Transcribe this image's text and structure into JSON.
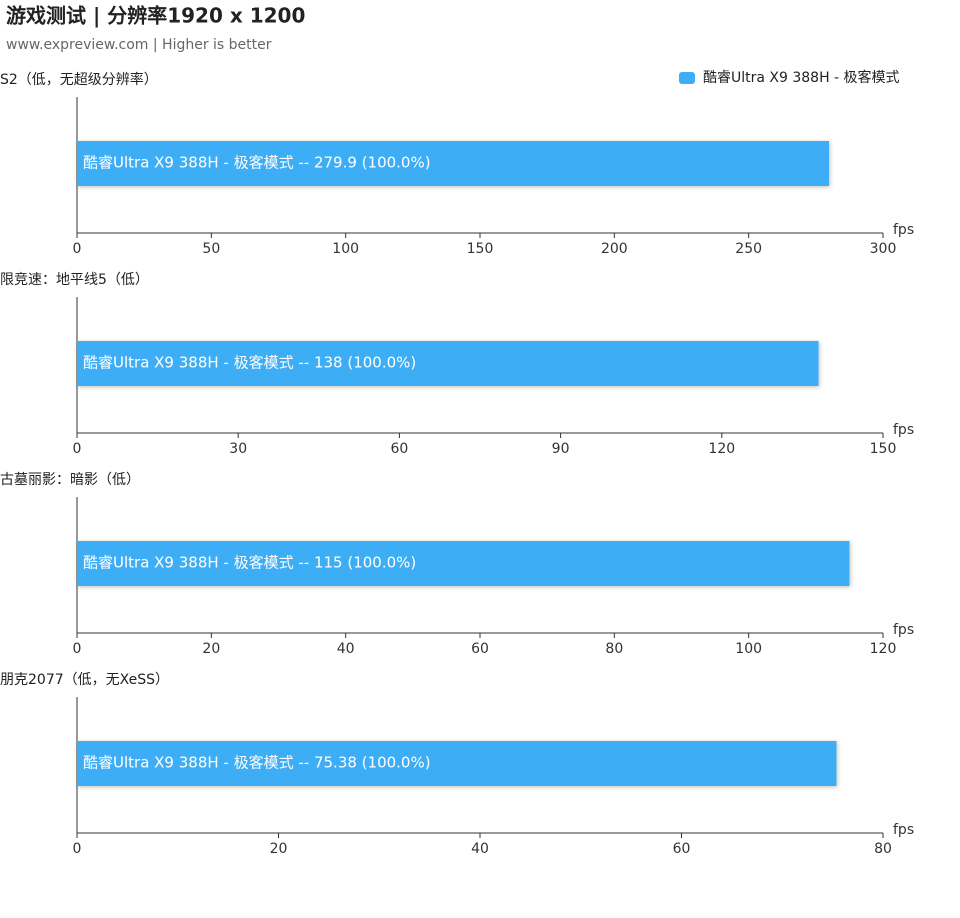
{
  "header": {
    "title": "游戏测试 | 分辨率1920 x 1200",
    "subtitle": "www.expreview.com | Higher is better"
  },
  "chart_data": [
    {
      "type": "bar",
      "orientation": "horizontal",
      "title": "S2（低，无超级分辨率）",
      "xlabel": "fps",
      "legend": "top-right",
      "series": [
        {
          "name": "酷睿Ultra X9 388H - 极客模式",
          "color": "#3daef5",
          "values": [
            279.9
          ],
          "value_labels": [
            "酷睿Ultra X9 388H - 极客模式  --  279.9 (100.0%)"
          ]
        }
      ],
      "xlim": [
        0,
        300
      ],
      "xticks": [
        0,
        50,
        100,
        150,
        200,
        250,
        300
      ]
    },
    {
      "type": "bar",
      "orientation": "horizontal",
      "title": "限竞速：地平线5（低）",
      "xlabel": "fps",
      "series": [
        {
          "color": "#3daef5",
          "values": [
            138
          ],
          "value_labels": [
            "酷睿Ultra X9 388H - 极客模式  --  138 (100.0%)"
          ]
        }
      ],
      "xlim": [
        0,
        150
      ],
      "xticks": [
        0,
        30,
        60,
        90,
        120,
        150
      ]
    },
    {
      "type": "bar",
      "orientation": "horizontal",
      "title": "古墓丽影：暗影（低）",
      "xlabel": "fps",
      "series": [
        {
          "color": "#3daef5",
          "values": [
            115
          ],
          "value_labels": [
            "酷睿Ultra X9 388H - 极客模式  --  115 (100.0%)"
          ]
        }
      ],
      "xlim": [
        0,
        120
      ],
      "xticks": [
        0,
        20,
        40,
        60,
        80,
        100,
        120
      ]
    },
    {
      "type": "bar",
      "orientation": "horizontal",
      "title": "朋克2077（低，无XeSS）",
      "xlabel": "fps",
      "series": [
        {
          "color": "#3daef5",
          "values": [
            75.38
          ],
          "value_labels": [
            "酷睿Ultra X9 388H - 极客模式  --  75.38 (100.0%)"
          ]
        }
      ],
      "xlim": [
        0,
        80
      ],
      "xticks": [
        0,
        20,
        40,
        60,
        80
      ]
    }
  ]
}
